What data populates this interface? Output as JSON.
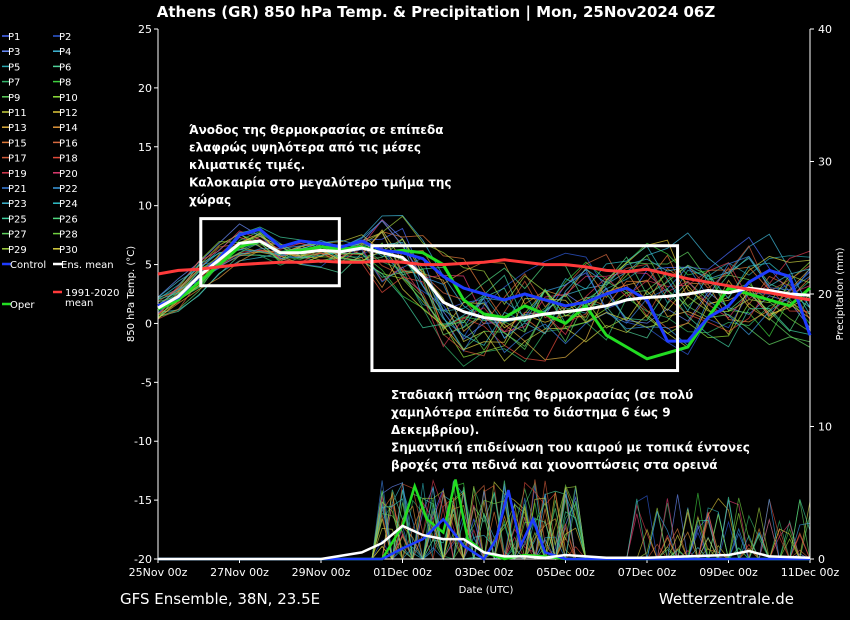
{
  "chart_data": {
    "type": "line",
    "title": "Athens  (GR)  850 hPa Temp. & Precipitation | Mon, 25Nov2024 06Z",
    "ylabel": "850 hPa Temp. (°C)",
    "y2label": "Precipitation (mm)",
    "xlabel": "Date (UTC)",
    "ylim": [
      -20,
      25
    ],
    "y2lim": [
      0,
      40
    ],
    "yticks": [
      25,
      20,
      15,
      10,
      5,
      0,
      -5,
      -10,
      -15,
      -20
    ],
    "y2ticks": [
      40,
      30,
      20,
      10,
      0
    ],
    "xlim": [
      0,
      16
    ],
    "xticks": [
      {
        "x": 0,
        "label": "25Nov 00z"
      },
      {
        "x": 2,
        "label": "27Nov 00z"
      },
      {
        "x": 4,
        "label": "29Nov 00z"
      },
      {
        "x": 6,
        "label": "01Dec 00z"
      },
      {
        "x": 8,
        "label": "03Dec 00z"
      },
      {
        "x": 10,
        "label": "05Dec 00z"
      },
      {
        "x": 12,
        "label": "07Dec 00z"
      },
      {
        "x": 14,
        "label": "09Dec 00z"
      },
      {
        "x": 16,
        "label": "11Dec 00z"
      }
    ],
    "grid": false,
    "legend_position": "left",
    "legend": [
      {
        "name": "P1",
        "color": "#4a6cff"
      },
      {
        "name": "P2",
        "color": "#2f5bd8"
      },
      {
        "name": "P3",
        "color": "#6c8fff"
      },
      {
        "name": "P4",
        "color": "#3fb8d8"
      },
      {
        "name": "P5",
        "color": "#2aa8b0"
      },
      {
        "name": "P6",
        "color": "#4fd29a"
      },
      {
        "name": "P7",
        "color": "#34b46a"
      },
      {
        "name": "P8",
        "color": "#3ecf3e"
      },
      {
        "name": "P9",
        "color": "#5ed05e"
      },
      {
        "name": "P10",
        "color": "#8fe03a"
      },
      {
        "name": "P11",
        "color": "#c8d040"
      },
      {
        "name": "P12",
        "color": "#e0c83a"
      },
      {
        "name": "P13",
        "color": "#e0b040"
      },
      {
        "name": "P14",
        "color": "#e0963a"
      },
      {
        "name": "P15",
        "color": "#e07a3a"
      },
      {
        "name": "P16",
        "color": "#d86a40"
      },
      {
        "name": "P17",
        "color": "#d05a3a"
      },
      {
        "name": "P18",
        "color": "#e04a3a"
      },
      {
        "name": "P19",
        "color": "#d83a50"
      },
      {
        "name": "P20",
        "color": "#e03a70"
      },
      {
        "name": "P21",
        "color": "#3a80e0"
      },
      {
        "name": "P22",
        "color": "#3a9ae0"
      },
      {
        "name": "P23",
        "color": "#40b8d0"
      },
      {
        "name": "P24",
        "color": "#30c0c8"
      },
      {
        "name": "P25",
        "color": "#40d0a0"
      },
      {
        "name": "P26",
        "color": "#50d880"
      },
      {
        "name": "P27",
        "color": "#60d060"
      },
      {
        "name": "P28",
        "color": "#70d040"
      },
      {
        "name": "P29",
        "color": "#a0d040"
      },
      {
        "name": "P30",
        "color": "#d8d040"
      },
      {
        "name": "Control",
        "color": "#1e3cff"
      },
      {
        "name": "Ens. mean",
        "color": "#ffffff"
      },
      {
        "name": "Oper",
        "color": "#22dd22"
      },
      {
        "name": "1991-2020 mean",
        "color": "#ff3a3a"
      }
    ],
    "series": [
      {
        "name": "Oper",
        "color": "#22dd22",
        "width": 3,
        "x": [
          0,
          0.5,
          1,
          1.5,
          2,
          2.5,
          3,
          3.5,
          4,
          4.5,
          5,
          5.5,
          6,
          6.5,
          7,
          7.5,
          8,
          8.5,
          9,
          9.5,
          10,
          10.5,
          11,
          11.5,
          12,
          12.5,
          13,
          13.5,
          14,
          14.5,
          15,
          15.5,
          16
        ],
        "y": [
          1.2,
          2,
          3.5,
          5,
          6.5,
          7,
          6,
          6.2,
          6.5,
          6.3,
          6.5,
          6,
          6.2,
          6,
          5,
          2,
          0.8,
          0.5,
          1.5,
          0.8,
          0,
          1.5,
          -1,
          -2,
          -3,
          -2.5,
          -2,
          0.5,
          3,
          2.5,
          2,
          1.5,
          3
        ]
      },
      {
        "name": "Control",
        "color": "#1e3cff",
        "width": 3,
        "x": [
          0,
          0.5,
          1,
          1.5,
          2,
          2.5,
          3,
          3.5,
          4,
          4.5,
          5,
          5.5,
          6,
          6.5,
          7,
          7.5,
          8,
          8.5,
          9,
          9.5,
          10,
          10.5,
          11,
          11.5,
          12,
          12.5,
          13,
          13.5,
          14,
          14.5,
          15,
          15.5,
          16
        ],
        "y": [
          1.5,
          2.2,
          4,
          5.5,
          7.5,
          8,
          6.5,
          7,
          6.8,
          6.5,
          7,
          6.2,
          6,
          5.5,
          4,
          3,
          2.5,
          2,
          2.5,
          2,
          1.5,
          1.8,
          2.5,
          3,
          2,
          -1.5,
          -1.5,
          0.5,
          1.5,
          3.5,
          4.5,
          4,
          -1
        ]
      },
      {
        "name": "Ens. mean",
        "color": "#ffffff",
        "width": 3,
        "x": [
          0,
          0.5,
          1,
          1.5,
          2,
          2.5,
          3,
          3.5,
          4,
          4.5,
          5,
          5.5,
          6,
          6.5,
          7,
          7.5,
          8,
          8.5,
          9,
          9.5,
          10,
          10.5,
          11,
          11.5,
          12,
          12.5,
          13,
          13.5,
          14,
          14.5,
          15,
          15.5,
          16
        ],
        "y": [
          1.3,
          2.3,
          4,
          5.4,
          6.8,
          7,
          6,
          6,
          6.2,
          6.1,
          6.4,
          6,
          5.6,
          4,
          1.8,
          1,
          0.5,
          0.3,
          0.5,
          0.8,
          1,
          1.2,
          1.5,
          2,
          2.2,
          2.3,
          2.5,
          2.8,
          2.6,
          3,
          2.8,
          2.5,
          2.4
        ]
      },
      {
        "name": "1991-2020 mean",
        "color": "#ff3a3a",
        "width": 3,
        "x": [
          0,
          0.5,
          1,
          1.5,
          2,
          2.5,
          3,
          3.5,
          4,
          4.5,
          5,
          5.5,
          6,
          6.5,
          7,
          7.5,
          8,
          8.5,
          9,
          9.5,
          10,
          10.5,
          11,
          11.5,
          12,
          12.5,
          13,
          13.5,
          14,
          14.5,
          15,
          15.5,
          16
        ],
        "y": [
          4.2,
          4.5,
          4.6,
          4.8,
          5,
          5.1,
          5.2,
          5.2,
          5.3,
          5.2,
          5.2,
          5.3,
          5.2,
          5,
          5,
          5.1,
          5.2,
          5.4,
          5.2,
          5,
          5,
          4.8,
          4.5,
          4.4,
          4.6,
          4.2,
          3.8,
          3.5,
          3.2,
          2.9,
          2.6,
          2.3,
          2
        ]
      }
    ],
    "precip_series": [
      {
        "name": "Oper",
        "color": "#22dd22",
        "x": [
          0,
          5.5,
          6,
          6.3,
          6.6,
          7,
          7.3,
          7.6,
          8,
          8.5,
          9,
          9.5,
          10,
          16
        ],
        "y": [
          0,
          0,
          2.5,
          5.5,
          3,
          2,
          6,
          1.5,
          0.5,
          0,
          0.3,
          0.2,
          0,
          0
        ]
      },
      {
        "name": "Control",
        "color": "#1e3cff",
        "x": [
          0,
          5.5,
          6,
          6.5,
          7,
          7.5,
          8,
          8.3,
          8.6,
          8.9,
          9.2,
          9.5,
          10,
          16
        ],
        "y": [
          0,
          0,
          0.8,
          1.5,
          3,
          1,
          0,
          1.5,
          5.2,
          1,
          3,
          0.5,
          0,
          0
        ]
      },
      {
        "name": "Ens. mean",
        "color": "#ffffff",
        "x": [
          0,
          4,
          5,
          5.5,
          6,
          6.5,
          7,
          7.5,
          8,
          8.5,
          9,
          9.5,
          10,
          11,
          12,
          13,
          14,
          14.5,
          15,
          16
        ],
        "y": [
          0,
          0,
          0.5,
          1.2,
          2.5,
          1.8,
          1.5,
          1.5,
          0.5,
          0.2,
          0.2,
          0.1,
          0.3,
          0.1,
          0.1,
          0.2,
          0.3,
          0.6,
          0.2,
          0.1
        ]
      }
    ],
    "annotations": [
      {
        "lines": [
          "Άνοδος της θερμοκρασίας σε επίπεδα",
          "ελαφρώς υψηλότερα από τις μέσες",
          "κλιματικές τιμές.",
          "Καλοκαιρία στο μεγαλύτερο τμήμα της",
          "χώρας"
        ]
      },
      {
        "lines": [
          "Σταδιακή πτώση της θερμοκρασίας (σε πολύ",
          "χαμηλότερα επίπεδα το διάστημα 6 έως 9",
          "Δεκεμβρίου).",
          "Σημαντική επιδείνωση του καιρού με τοπικά έντονες",
          "βροχές στα πεδινά και χιονοπτώσεις στα ορεινά"
        ]
      }
    ],
    "boxes": [
      {
        "x": [
          1.05,
          4.45
        ],
        "y": [
          3.2,
          8.9
        ]
      },
      {
        "x": [
          5.25,
          12.75
        ],
        "y": [
          -4,
          6.6
        ]
      }
    ]
  },
  "footer": {
    "left": "GFS Ensemble, 38N, 23.5E",
    "right": "Wetterzentrale.de"
  }
}
